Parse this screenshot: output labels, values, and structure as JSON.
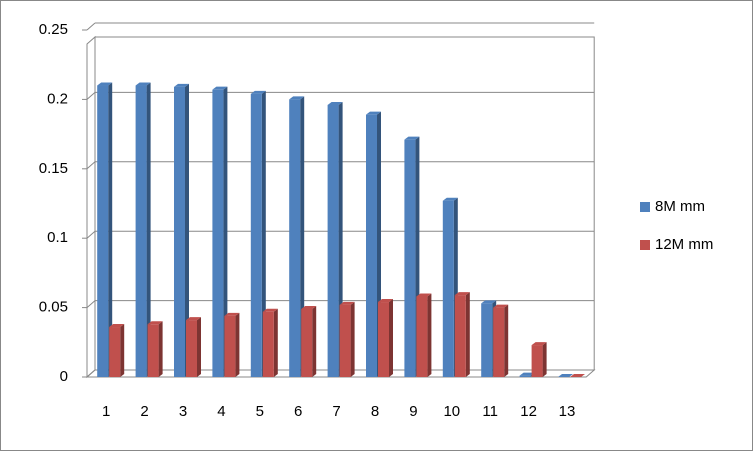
{
  "chart_data": {
    "type": "bar",
    "categories": [
      "1",
      "2",
      "3",
      "4",
      "5",
      "6",
      "7",
      "8",
      "9",
      "10",
      "11",
      "12",
      "13"
    ],
    "series": [
      {
        "name": "8M mm",
        "color": "#4f81bd",
        "values": [
          0.21,
          0.21,
          0.209,
          0.207,
          0.204,
          0.2,
          0.196,
          0.189,
          0.171,
          0.127,
          0.053,
          0.001,
          0
        ]
      },
      {
        "name": "12M mm",
        "color": "#c0504d",
        "values": [
          0.036,
          0.038,
          0.041,
          0.044,
          0.047,
          0.049,
          0.052,
          0.054,
          0.058,
          0.059,
          0.05,
          0.023,
          0
        ]
      }
    ],
    "ylim": [
      0,
      0.25
    ],
    "yticks": [
      0,
      0.05,
      0.1,
      0.15,
      0.2,
      0.25
    ],
    "grid": true,
    "legend": "right"
  }
}
